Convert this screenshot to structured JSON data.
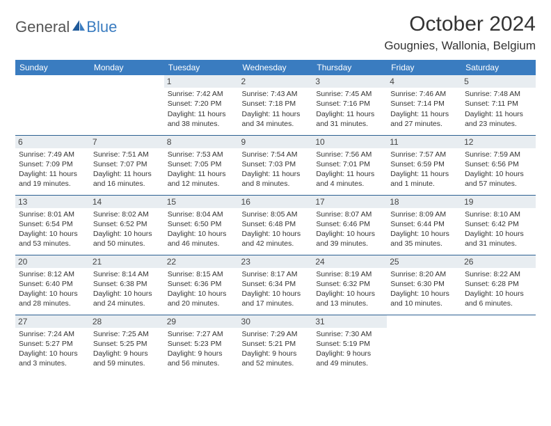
{
  "header": {
    "logo_general": "General",
    "logo_blue": "Blue",
    "month_title": "October 2024",
    "location": "Gougnies, Wallonia, Belgium"
  },
  "colors": {
    "header_bg": "#3a7cc0",
    "header_text": "#ffffff",
    "daynum_bg": "#e8edf1",
    "row_border": "#2b5f91",
    "logo_blue": "#3a7cc0"
  },
  "day_names": [
    "Sunday",
    "Monday",
    "Tuesday",
    "Wednesday",
    "Thursday",
    "Friday",
    "Saturday"
  ],
  "weeks": [
    [
      {
        "empty": true
      },
      {
        "empty": true
      },
      {
        "day": "1",
        "sunrise": "Sunrise: 7:42 AM",
        "sunset": "Sunset: 7:20 PM",
        "daylight": "Daylight: 11 hours and 38 minutes."
      },
      {
        "day": "2",
        "sunrise": "Sunrise: 7:43 AM",
        "sunset": "Sunset: 7:18 PM",
        "daylight": "Daylight: 11 hours and 34 minutes."
      },
      {
        "day": "3",
        "sunrise": "Sunrise: 7:45 AM",
        "sunset": "Sunset: 7:16 PM",
        "daylight": "Daylight: 11 hours and 31 minutes."
      },
      {
        "day": "4",
        "sunrise": "Sunrise: 7:46 AM",
        "sunset": "Sunset: 7:14 PM",
        "daylight": "Daylight: 11 hours and 27 minutes."
      },
      {
        "day": "5",
        "sunrise": "Sunrise: 7:48 AM",
        "sunset": "Sunset: 7:11 PM",
        "daylight": "Daylight: 11 hours and 23 minutes."
      }
    ],
    [
      {
        "day": "6",
        "sunrise": "Sunrise: 7:49 AM",
        "sunset": "Sunset: 7:09 PM",
        "daylight": "Daylight: 11 hours and 19 minutes."
      },
      {
        "day": "7",
        "sunrise": "Sunrise: 7:51 AM",
        "sunset": "Sunset: 7:07 PM",
        "daylight": "Daylight: 11 hours and 16 minutes."
      },
      {
        "day": "8",
        "sunrise": "Sunrise: 7:53 AM",
        "sunset": "Sunset: 7:05 PM",
        "daylight": "Daylight: 11 hours and 12 minutes."
      },
      {
        "day": "9",
        "sunrise": "Sunrise: 7:54 AM",
        "sunset": "Sunset: 7:03 PM",
        "daylight": "Daylight: 11 hours and 8 minutes."
      },
      {
        "day": "10",
        "sunrise": "Sunrise: 7:56 AM",
        "sunset": "Sunset: 7:01 PM",
        "daylight": "Daylight: 11 hours and 4 minutes."
      },
      {
        "day": "11",
        "sunrise": "Sunrise: 7:57 AM",
        "sunset": "Sunset: 6:59 PM",
        "daylight": "Daylight: 11 hours and 1 minute."
      },
      {
        "day": "12",
        "sunrise": "Sunrise: 7:59 AM",
        "sunset": "Sunset: 6:56 PM",
        "daylight": "Daylight: 10 hours and 57 minutes."
      }
    ],
    [
      {
        "day": "13",
        "sunrise": "Sunrise: 8:01 AM",
        "sunset": "Sunset: 6:54 PM",
        "daylight": "Daylight: 10 hours and 53 minutes."
      },
      {
        "day": "14",
        "sunrise": "Sunrise: 8:02 AM",
        "sunset": "Sunset: 6:52 PM",
        "daylight": "Daylight: 10 hours and 50 minutes."
      },
      {
        "day": "15",
        "sunrise": "Sunrise: 8:04 AM",
        "sunset": "Sunset: 6:50 PM",
        "daylight": "Daylight: 10 hours and 46 minutes."
      },
      {
        "day": "16",
        "sunrise": "Sunrise: 8:05 AM",
        "sunset": "Sunset: 6:48 PM",
        "daylight": "Daylight: 10 hours and 42 minutes."
      },
      {
        "day": "17",
        "sunrise": "Sunrise: 8:07 AM",
        "sunset": "Sunset: 6:46 PM",
        "daylight": "Daylight: 10 hours and 39 minutes."
      },
      {
        "day": "18",
        "sunrise": "Sunrise: 8:09 AM",
        "sunset": "Sunset: 6:44 PM",
        "daylight": "Daylight: 10 hours and 35 minutes."
      },
      {
        "day": "19",
        "sunrise": "Sunrise: 8:10 AM",
        "sunset": "Sunset: 6:42 PM",
        "daylight": "Daylight: 10 hours and 31 minutes."
      }
    ],
    [
      {
        "day": "20",
        "sunrise": "Sunrise: 8:12 AM",
        "sunset": "Sunset: 6:40 PM",
        "daylight": "Daylight: 10 hours and 28 minutes."
      },
      {
        "day": "21",
        "sunrise": "Sunrise: 8:14 AM",
        "sunset": "Sunset: 6:38 PM",
        "daylight": "Daylight: 10 hours and 24 minutes."
      },
      {
        "day": "22",
        "sunrise": "Sunrise: 8:15 AM",
        "sunset": "Sunset: 6:36 PM",
        "daylight": "Daylight: 10 hours and 20 minutes."
      },
      {
        "day": "23",
        "sunrise": "Sunrise: 8:17 AM",
        "sunset": "Sunset: 6:34 PM",
        "daylight": "Daylight: 10 hours and 17 minutes."
      },
      {
        "day": "24",
        "sunrise": "Sunrise: 8:19 AM",
        "sunset": "Sunset: 6:32 PM",
        "daylight": "Daylight: 10 hours and 13 minutes."
      },
      {
        "day": "25",
        "sunrise": "Sunrise: 8:20 AM",
        "sunset": "Sunset: 6:30 PM",
        "daylight": "Daylight: 10 hours and 10 minutes."
      },
      {
        "day": "26",
        "sunrise": "Sunrise: 8:22 AM",
        "sunset": "Sunset: 6:28 PM",
        "daylight": "Daylight: 10 hours and 6 minutes."
      }
    ],
    [
      {
        "day": "27",
        "sunrise": "Sunrise: 7:24 AM",
        "sunset": "Sunset: 5:27 PM",
        "daylight": "Daylight: 10 hours and 3 minutes."
      },
      {
        "day": "28",
        "sunrise": "Sunrise: 7:25 AM",
        "sunset": "Sunset: 5:25 PM",
        "daylight": "Daylight: 9 hours and 59 minutes."
      },
      {
        "day": "29",
        "sunrise": "Sunrise: 7:27 AM",
        "sunset": "Sunset: 5:23 PM",
        "daylight": "Daylight: 9 hours and 56 minutes."
      },
      {
        "day": "30",
        "sunrise": "Sunrise: 7:29 AM",
        "sunset": "Sunset: 5:21 PM",
        "daylight": "Daylight: 9 hours and 52 minutes."
      },
      {
        "day": "31",
        "sunrise": "Sunrise: 7:30 AM",
        "sunset": "Sunset: 5:19 PM",
        "daylight": "Daylight: 9 hours and 49 minutes."
      },
      {
        "empty": true
      },
      {
        "empty": true
      }
    ]
  ]
}
